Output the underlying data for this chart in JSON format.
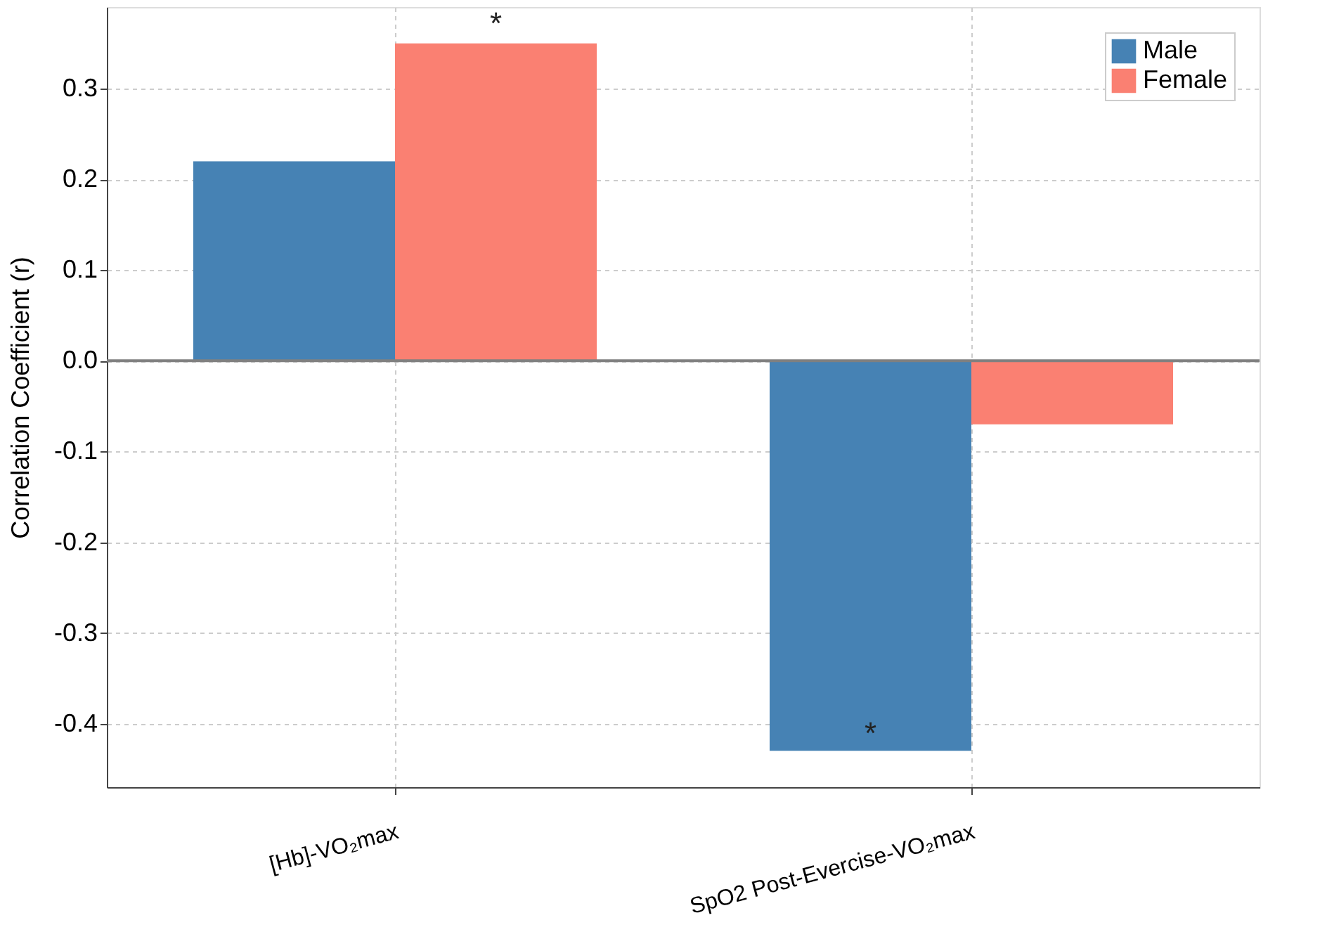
{
  "chart_data": {
    "type": "bar",
    "ylabel": "Correlation Coefficient (r)",
    "categories": [
      "[Hb]-VO₂max",
      "SpO2 Post-Evercise-VO₂max"
    ],
    "series": [
      {
        "name": "Male",
        "color": "#4682b4",
        "values": [
          0.22,
          -0.43
        ]
      },
      {
        "name": "Female",
        "color": "#fa8072",
        "values": [
          0.35,
          -0.07
        ]
      }
    ],
    "ylim": [
      -0.47,
      0.39
    ],
    "yticks": [
      -0.4,
      -0.3,
      -0.2,
      -0.1,
      {
        "value": 0,
        "label": "0.0"
      },
      0.1,
      0.2,
      0.3
    ],
    "ref_lines": [
      {
        "axis": "y",
        "value": 0,
        "color": "#808080"
      }
    ],
    "annotations": [
      "*",
      "*"
    ],
    "grid": true,
    "legend": "top right"
  }
}
